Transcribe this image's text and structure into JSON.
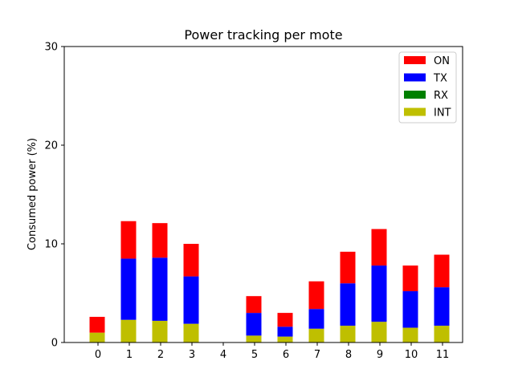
{
  "chart_data": {
    "type": "bar",
    "stacked": true,
    "title": "Power tracking per mote",
    "xlabel": "",
    "ylabel": "Consumed power (%)",
    "ylim": [
      0,
      30
    ],
    "yticks": [
      0,
      10,
      20,
      30
    ],
    "grid": false,
    "legend_position": "top-right",
    "categories": [
      "0",
      "1",
      "2",
      "3",
      "4",
      "5",
      "6",
      "7",
      "8",
      "9",
      "10",
      "11"
    ],
    "series": [
      {
        "name": "INT",
        "color": "#bfbf00",
        "values": [
          1.0,
          2.3,
          2.2,
          1.9,
          0,
          0.7,
          0.6,
          1.4,
          1.7,
          2.1,
          1.5,
          1.7
        ]
      },
      {
        "name": "RX",
        "color": "#008000",
        "values": [
          0,
          0,
          0,
          0,
          0,
          0,
          0,
          0,
          0,
          0,
          0,
          0
        ]
      },
      {
        "name": "TX",
        "color": "#0000ff",
        "values": [
          0,
          6.2,
          6.4,
          4.8,
          0,
          2.3,
          1.0,
          2.0,
          4.3,
          5.7,
          3.7,
          3.9
        ]
      },
      {
        "name": "ON",
        "color": "#ff0000",
        "values": [
          1.6,
          3.8,
          3.5,
          3.3,
          0,
          1.7,
          1.4,
          2.8,
          3.2,
          3.7,
          2.6,
          3.3
        ]
      }
    ],
    "legend_order": [
      "ON",
      "TX",
      "RX",
      "INT"
    ]
  }
}
